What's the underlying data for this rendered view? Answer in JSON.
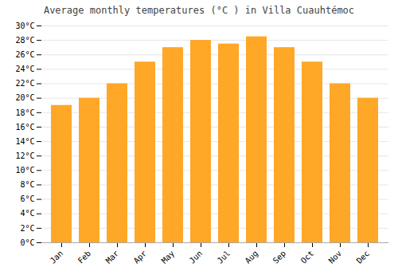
{
  "chart_data": {
    "type": "bar",
    "title": "Average monthly temperatures (°C ) in Villa Cuauhtémoc",
    "categories": [
      "Jan",
      "Feb",
      "Mar",
      "Apr",
      "May",
      "Jun",
      "Jul",
      "Aug",
      "Sep",
      "Oct",
      "Nov",
      "Dec"
    ],
    "values": [
      19,
      20,
      22,
      25,
      27,
      28,
      27.5,
      28.5,
      27,
      25,
      22,
      20
    ],
    "color": "#FFA726",
    "ylim": [
      0,
      30
    ],
    "yticks": [
      {
        "value": 0,
        "label": "0°C"
      },
      {
        "value": 2,
        "label": "2°C"
      },
      {
        "value": 4,
        "label": "4°C"
      },
      {
        "value": 6,
        "label": "6°C"
      },
      {
        "value": 8,
        "label": "8°C"
      },
      {
        "value": 10,
        "label": "10°C"
      },
      {
        "value": 12,
        "label": "12°C"
      },
      {
        "value": 14,
        "label": "14°C"
      },
      {
        "value": 16,
        "label": "16°C"
      },
      {
        "value": 18,
        "label": "18°C"
      },
      {
        "value": 20,
        "label": "20°C"
      },
      {
        "value": 22,
        "label": "22°C"
      },
      {
        "value": 24,
        "label": "24°C"
      },
      {
        "value": 26,
        "label": "26°C"
      },
      {
        "value": 28,
        "label": "28°C"
      },
      {
        "value": 30,
        "label": "30°C"
      }
    ],
    "grid": true
  }
}
